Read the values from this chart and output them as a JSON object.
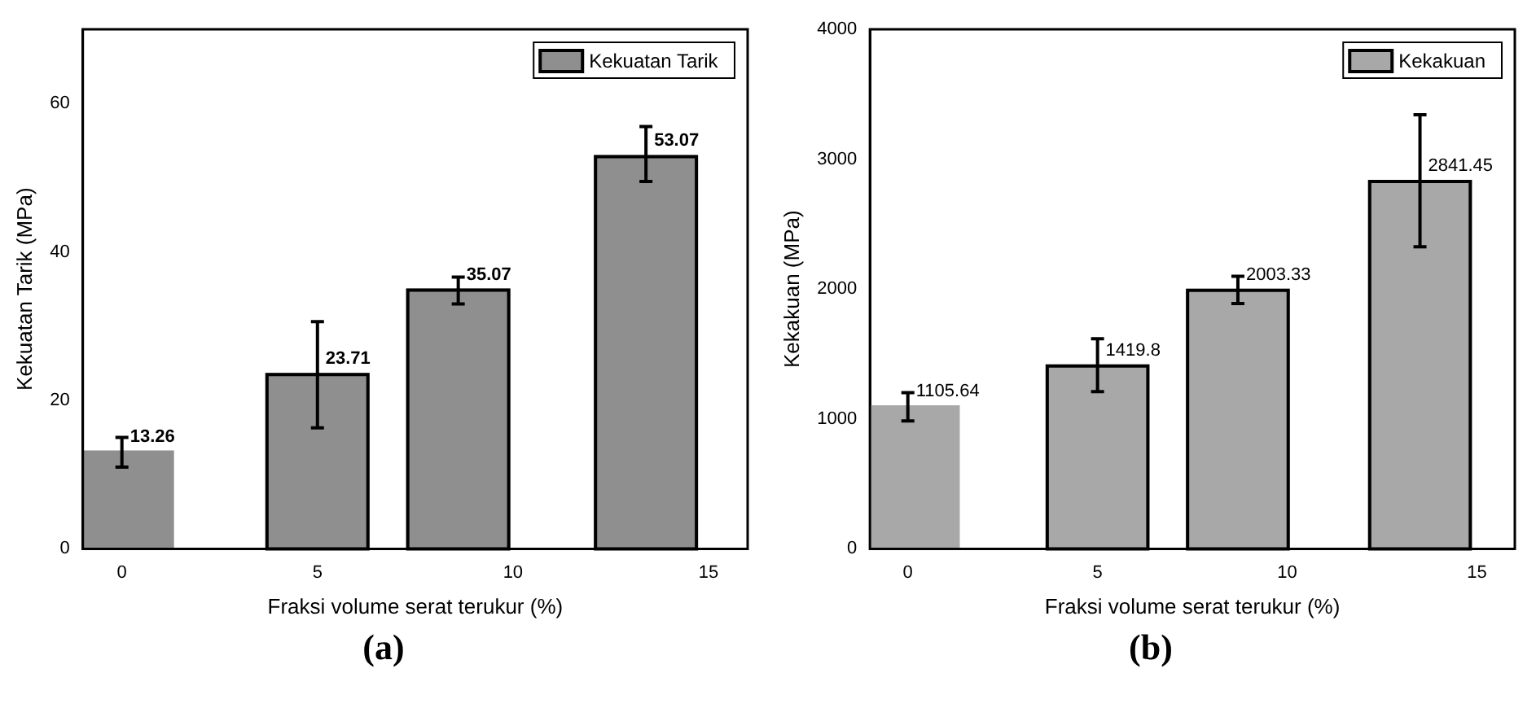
{
  "chart_data": [
    {
      "type": "bar",
      "x": [
        0,
        5,
        8.6,
        13.4
      ],
      "xlim": [
        -1,
        16
      ],
      "xticks": [
        0,
        5,
        10,
        15
      ],
      "ylim": [
        0,
        70
      ],
      "yticks": [
        0,
        20,
        40,
        60
      ],
      "xlabel": "Fraksi volume serat terukur (%)",
      "ylabel": "Kekuatan Tarik (MPa)",
      "legend": "top right",
      "grid": false,
      "data_labels": true,
      "annotations": [
        "(a)"
      ],
      "series": [
        {
          "name": "Kekuatan Tarik",
          "color": "#8f8f8f",
          "values": [
            13.26,
            23.71,
            35.07,
            53.07
          ],
          "errors": [
            [
              11.0,
              15.0
            ],
            [
              16.3,
              30.6
            ],
            [
              33.0,
              36.6
            ],
            [
              49.5,
              56.9
            ]
          ]
        }
      ]
    },
    {
      "type": "bar",
      "x": [
        0,
        5,
        8.7,
        13.5
      ],
      "xlim": [
        -1,
        16
      ],
      "xticks": [
        0,
        5,
        10,
        15
      ],
      "ylim": [
        0,
        4000
      ],
      "yticks": [
        0,
        1000,
        2000,
        3000,
        4000
      ],
      "xlabel": "Fraksi volume serat terukur (%)",
      "ylabel": "Kekakuan (MPa)",
      "legend": "top right",
      "grid": false,
      "data_labels": true,
      "annotations": [
        "(b)"
      ],
      "series": [
        {
          "name": "Kekakuan",
          "color": "#a8a8a8",
          "values": [
            1105.64,
            1419.8,
            2003.33,
            2841.45
          ],
          "errors": [
            [
              984,
              1202
            ],
            [
              1210,
              1617
            ],
            [
              1889,
              2099
            ],
            [
              2325,
              3342
            ]
          ]
        }
      ]
    }
  ]
}
